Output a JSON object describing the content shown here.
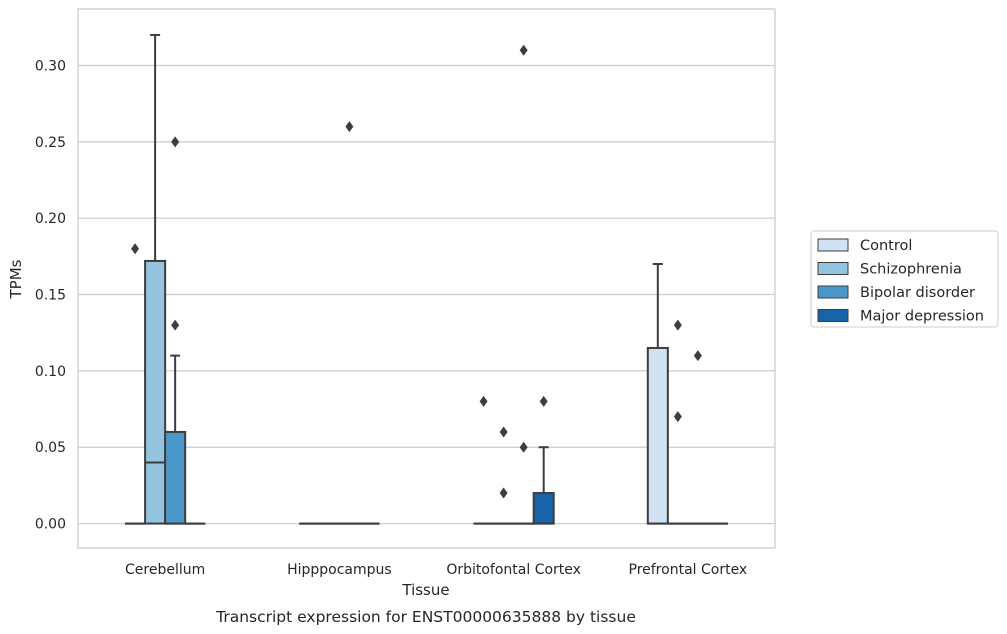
{
  "chart_data": {
    "type": "box",
    "title": "",
    "caption": "Transcript expression for ENST00000635888 by tissue",
    "xlabel": "Tissue",
    "ylabel": "TPMs",
    "ylim": [
      -0.016,
      0.337
    ],
    "yticks": [
      "0.00",
      "0.05",
      "0.10",
      "0.15",
      "0.20",
      "0.25",
      "0.30"
    ],
    "grid": "horizontal",
    "legend_position": "right",
    "categories": [
      "Cerebellum",
      "Hipppocampus",
      "Orbitofontal Cortex",
      "Prefrontal Cortex"
    ],
    "series": [
      {
        "name": "Control",
        "color": "#d0e1f2",
        "boxes": [
          {
            "q1": 0,
            "median": 0,
            "q3": 0,
            "whisker_low": 0,
            "whisker_high": 0,
            "outliers": [
              0.18
            ]
          },
          {
            "q1": 0,
            "median": 0,
            "q3": 0,
            "whisker_low": 0,
            "whisker_high": 0,
            "outliers": []
          },
          {
            "q1": 0,
            "median": 0,
            "q3": 0,
            "whisker_low": 0,
            "whisker_high": 0,
            "outliers": [
              0.08
            ]
          },
          {
            "q1": 0,
            "median": 0,
            "q3": 0.115,
            "whisker_low": 0,
            "whisker_high": 0.17,
            "outliers": []
          }
        ]
      },
      {
        "name": "Schizophrenia",
        "color": "#94c4df",
        "boxes": [
          {
            "q1": 0,
            "median": 0.04,
            "q3": 0.172,
            "whisker_low": 0,
            "whisker_high": 0.32,
            "outliers": []
          },
          {
            "q1": 0,
            "median": 0,
            "q3": 0,
            "whisker_low": 0,
            "whisker_high": 0,
            "outliers": []
          },
          {
            "q1": 0,
            "median": 0,
            "q3": 0,
            "whisker_low": 0,
            "whisker_high": 0,
            "outliers": [
              0.06,
              0.02
            ]
          },
          {
            "q1": 0,
            "median": 0,
            "q3": 0,
            "whisker_low": 0,
            "whisker_high": 0,
            "outliers": [
              0.13,
              0.07
            ]
          }
        ]
      },
      {
        "name": "Bipolar disorder",
        "color": "#4a98c9",
        "boxes": [
          {
            "q1": 0,
            "median": 0,
            "q3": 0.06,
            "whisker_low": 0,
            "whisker_high": 0.11,
            "outliers": [
              0.25,
              0.13
            ]
          },
          {
            "q1": 0,
            "median": 0,
            "q3": 0,
            "whisker_low": 0,
            "whisker_high": 0,
            "outliers": [
              0.26
            ]
          },
          {
            "q1": 0,
            "median": 0,
            "q3": 0,
            "whisker_low": 0,
            "whisker_high": 0,
            "outliers": [
              0.31,
              0.05
            ]
          },
          {
            "q1": 0,
            "median": 0,
            "q3": 0,
            "whisker_low": 0,
            "whisker_high": 0,
            "outliers": [
              0.11
            ]
          }
        ]
      },
      {
        "name": "Major depression",
        "color": "#1764ab",
        "boxes": [
          {
            "q1": 0,
            "median": 0,
            "q3": 0,
            "whisker_low": 0,
            "whisker_high": 0,
            "outliers": []
          },
          {
            "q1": 0,
            "median": 0,
            "q3": 0,
            "whisker_low": 0,
            "whisker_high": 0,
            "outliers": []
          },
          {
            "q1": 0,
            "median": 0,
            "q3": 0.02,
            "whisker_low": 0,
            "whisker_high": 0.05,
            "outliers": [
              0.08
            ]
          },
          {
            "q1": 0,
            "median": 0,
            "q3": 0,
            "whisker_low": 0,
            "whisker_high": 0,
            "outliers": []
          }
        ]
      }
    ]
  }
}
